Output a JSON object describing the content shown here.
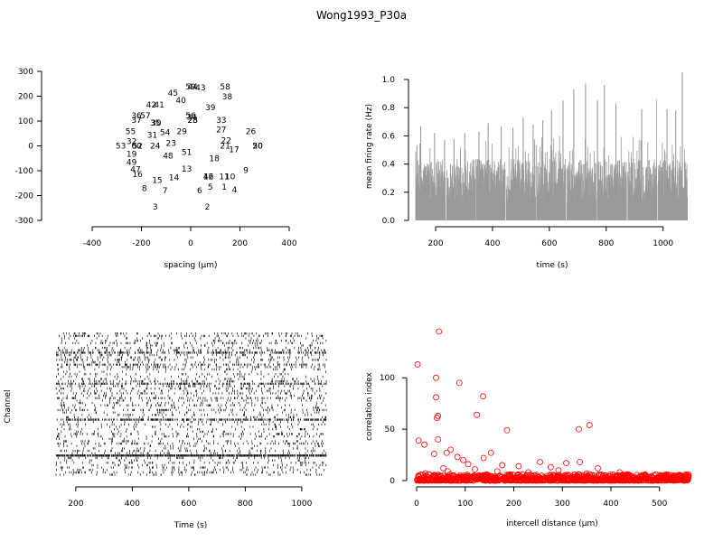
{
  "title": "Wong1993_P30a",
  "chart_data": [
    {
      "type": "scatter",
      "xlabel": "spacing (μm)",
      "ylabel": "",
      "xlim": [
        -400,
        400
      ],
      "ylim": [
        -300,
        300
      ],
      "xticks": [
        -400,
        -200,
        0,
        200,
        400
      ],
      "yticks": [
        300,
        200,
        100,
        0,
        -100,
        -200,
        -300
      ],
      "markers": "channel numbers as text labels",
      "points": [
        {
          "id": "1",
          "x": 136,
          "y": -165
        },
        {
          "id": "2",
          "x": 68,
          "y": -246
        },
        {
          "id": "3",
          "x": -144,
          "y": -246
        },
        {
          "id": "4",
          "x": 178,
          "y": -177
        },
        {
          "id": "5",
          "x": 80,
          "y": -165
        },
        {
          "id": "6",
          "x": 36,
          "y": -180
        },
        {
          "id": "7",
          "x": -104,
          "y": -180
        },
        {
          "id": "8",
          "x": -188,
          "y": -170
        },
        {
          "id": "9",
          "x": 224,
          "y": -99
        },
        {
          "id": "10",
          "x": 160,
          "y": -124
        },
        {
          "id": "11",
          "x": 136,
          "y": -124
        },
        {
          "id": "12",
          "x": 72,
          "y": -124
        },
        {
          "id": "13",
          "x": -16,
          "y": -92
        },
        {
          "id": "14",
          "x": -68,
          "y": -128
        },
        {
          "id": "15",
          "x": -136,
          "y": -139
        },
        {
          "id": "16",
          "x": -216,
          "y": -114
        },
        {
          "id": "17",
          "x": 176,
          "y": -15
        },
        {
          "id": "18",
          "x": 96,
          "y": -51
        },
        {
          "id": "19",
          "x": -240,
          "y": -33
        },
        {
          "id": "20",
          "x": 272,
          "y": 0
        },
        {
          "id": "21",
          "x": 140,
          "y": 0
        },
        {
          "id": "22",
          "x": 144,
          "y": 22
        },
        {
          "id": "23",
          "x": -80,
          "y": 11
        },
        {
          "id": "24",
          "x": -144,
          "y": 0
        },
        {
          "id": "25",
          "x": 8,
          "y": 103
        },
        {
          "id": "26",
          "x": 244,
          "y": 58
        },
        {
          "id": "27",
          "x": 124,
          "y": 66
        },
        {
          "id": "28",
          "x": 8,
          "y": 103
        },
        {
          "id": "29",
          "x": -36,
          "y": 58
        },
        {
          "id": "30",
          "x": -140,
          "y": 92
        },
        {
          "id": "31",
          "x": -156,
          "y": 44
        },
        {
          "id": "32",
          "x": -240,
          "y": 18
        },
        {
          "id": "33",
          "x": 124,
          "y": 103
        },
        {
          "id": "34",
          "x": 4,
          "y": 117
        },
        {
          "id": "35",
          "x": -144,
          "y": 92
        },
        {
          "id": "36",
          "x": -220,
          "y": 121
        },
        {
          "id": "37",
          "x": -220,
          "y": 103
        },
        {
          "id": "38",
          "x": 148,
          "y": 198
        },
        {
          "id": "39",
          "x": 80,
          "y": 154
        },
        {
          "id": "40",
          "x": -40,
          "y": 183
        },
        {
          "id": "41",
          "x": -128,
          "y": 165
        },
        {
          "id": "42",
          "x": -160,
          "y": 165
        },
        {
          "id": "43",
          "x": 40,
          "y": 234
        },
        {
          "id": "44",
          "x": 8,
          "y": 238
        },
        {
          "id": "45",
          "x": -72,
          "y": 213
        },
        {
          "id": "46",
          "x": 72,
          "y": -124
        },
        {
          "id": "47",
          "x": -224,
          "y": -95
        },
        {
          "id": "48",
          "x": -92,
          "y": -40
        },
        {
          "id": "49",
          "x": -240,
          "y": -66
        },
        {
          "id": "50",
          "x": 272,
          "y": 0
        },
        {
          "id": "51",
          "x": -16,
          "y": -26
        },
        {
          "id": "52",
          "x": -216,
          "y": 0
        },
        {
          "id": "53",
          "x": -284,
          "y": 0
        },
        {
          "id": "54",
          "x": -104,
          "y": 55
        },
        {
          "id": "55",
          "x": -244,
          "y": 58
        },
        {
          "id": "56",
          "x": 0,
          "y": 121
        },
        {
          "id": "57",
          "x": -184,
          "y": 121
        },
        {
          "id": "58",
          "x": 140,
          "y": 238
        },
        {
          "id": "59",
          "x": 0,
          "y": 238
        },
        {
          "id": "60",
          "x": -220,
          "y": 0
        }
      ]
    },
    {
      "type": "bar",
      "xlabel": "time (s)",
      "ylabel": "mean firing rate (Hz)",
      "xlim": [
        130,
        1090
      ],
      "ylim": [
        0,
        1.0
      ],
      "xticks": [
        200,
        400,
        600,
        800,
        1000
      ],
      "yticks": [
        0.0,
        0.2,
        0.4,
        0.6,
        0.8,
        1.0
      ],
      "segments": [
        {
          "start": 130,
          "end": 235
        },
        {
          "start": 239,
          "end": 339
        },
        {
          "start": 342,
          "end": 445
        },
        {
          "start": 449,
          "end": 552
        },
        {
          "start": 555,
          "end": 658
        },
        {
          "start": 662,
          "end": 765
        },
        {
          "start": 768,
          "end": 872
        },
        {
          "start": 876,
          "end": 978
        },
        {
          "start": 982,
          "end": 1086
        }
      ],
      "baseline": 0.35,
      "peaks": [
        {
          "t": 148,
          "v": 0.67
        },
        {
          "t": 196,
          "v": 0.62
        },
        {
          "t": 231,
          "v": 0.57
        },
        {
          "t": 265,
          "v": 0.58
        },
        {
          "t": 302,
          "v": 0.62
        },
        {
          "t": 352,
          "v": 0.63
        },
        {
          "t": 385,
          "v": 0.69
        },
        {
          "t": 431,
          "v": 0.67
        },
        {
          "t": 472,
          "v": 0.66
        },
        {
          "t": 508,
          "v": 0.73
        },
        {
          "t": 543,
          "v": 0.68
        },
        {
          "t": 577,
          "v": 0.71
        },
        {
          "t": 608,
          "v": 0.78
        },
        {
          "t": 648,
          "v": 0.85
        },
        {
          "t": 686,
          "v": 0.93
        },
        {
          "t": 727,
          "v": 0.97
        },
        {
          "t": 769,
          "v": 0.85
        },
        {
          "t": 794,
          "v": 0.96
        },
        {
          "t": 834,
          "v": 0.83
        },
        {
          "t": 873,
          "v": 0.85
        },
        {
          "t": 925,
          "v": 0.79
        },
        {
          "t": 978,
          "v": 0.86
        },
        {
          "t": 1014,
          "v": 0.79
        },
        {
          "t": 1045,
          "v": 0.78
        },
        {
          "t": 1068,
          "v": 1.05
        }
      ]
    },
    {
      "type": "raster",
      "xlabel": "Time (s)",
      "ylabel": "Channel",
      "xlim": [
        130,
        1090
      ],
      "xticks": [
        200,
        400,
        600,
        800,
        1000
      ],
      "channels": 60,
      "segments": [
        {
          "start": 130,
          "end": 235
        },
        {
          "start": 239,
          "end": 339
        },
        {
          "start": 342,
          "end": 445
        },
        {
          "start": 449,
          "end": 552
        },
        {
          "start": 555,
          "end": 658
        },
        {
          "start": 662,
          "end": 765
        },
        {
          "start": 768,
          "end": 872
        },
        {
          "start": 876,
          "end": 978
        },
        {
          "start": 982,
          "end": 1086
        }
      ]
    },
    {
      "type": "scatter",
      "xlabel": "intercell distance (μm)",
      "ylabel": "correlation index",
      "xlim": [
        0,
        560
      ],
      "ylim": [
        0,
        145
      ],
      "xticks": [
        0,
        100,
        200,
        300,
        400,
        500
      ],
      "yticks": [
        0,
        50,
        100
      ],
      "color": "#ff0000",
      "points": [
        {
          "x": 2,
          "y": 113
        },
        {
          "x": 46,
          "y": 145
        },
        {
          "x": 40,
          "y": 100
        },
        {
          "x": 40,
          "y": 81
        },
        {
          "x": 44,
          "y": 63
        },
        {
          "x": 42,
          "y": 61
        },
        {
          "x": 88,
          "y": 95
        },
        {
          "x": 137,
          "y": 82
        },
        {
          "x": 124,
          "y": 64
        },
        {
          "x": 186,
          "y": 49
        },
        {
          "x": 334,
          "y": 50
        },
        {
          "x": 356,
          "y": 54
        },
        {
          "x": 4,
          "y": 39
        },
        {
          "x": 16,
          "y": 35
        },
        {
          "x": 44,
          "y": 40
        },
        {
          "x": 62,
          "y": 27
        },
        {
          "x": 70,
          "y": 30
        },
        {
          "x": 36,
          "y": 26
        },
        {
          "x": 84,
          "y": 23
        },
        {
          "x": 96,
          "y": 20
        },
        {
          "x": 106,
          "y": 16
        },
        {
          "x": 138,
          "y": 22
        },
        {
          "x": 153,
          "y": 27
        },
        {
          "x": 176,
          "y": 15
        },
        {
          "x": 210,
          "y": 14
        },
        {
          "x": 254,
          "y": 18
        },
        {
          "x": 276,
          "y": 13
        },
        {
          "x": 308,
          "y": 17
        },
        {
          "x": 336,
          "y": 18
        },
        {
          "x": 373,
          "y": 12
        },
        {
          "x": 418,
          "y": 8
        },
        {
          "x": 470,
          "y": 6
        },
        {
          "x": 18,
          "y": 7
        },
        {
          "x": 26,
          "y": 6
        },
        {
          "x": 55,
          "y": 12
        },
        {
          "x": 64,
          "y": 9
        },
        {
          "x": 120,
          "y": 11
        },
        {
          "x": 166,
          "y": 9
        },
        {
          "x": 230,
          "y": 8
        },
        {
          "x": 292,
          "y": 10
        },
        {
          "x": 350,
          "y": 7
        },
        {
          "x": 438,
          "y": 5
        },
        {
          "x": 503,
          "y": 4
        },
        {
          "x": 527,
          "y": 2
        },
        {
          "x": 556,
          "y": 2
        }
      ],
      "note_dense_band": {
        "xmin": 0,
        "xmax": 560,
        "ymin": 0,
        "ymax": 6
      }
    }
  ]
}
